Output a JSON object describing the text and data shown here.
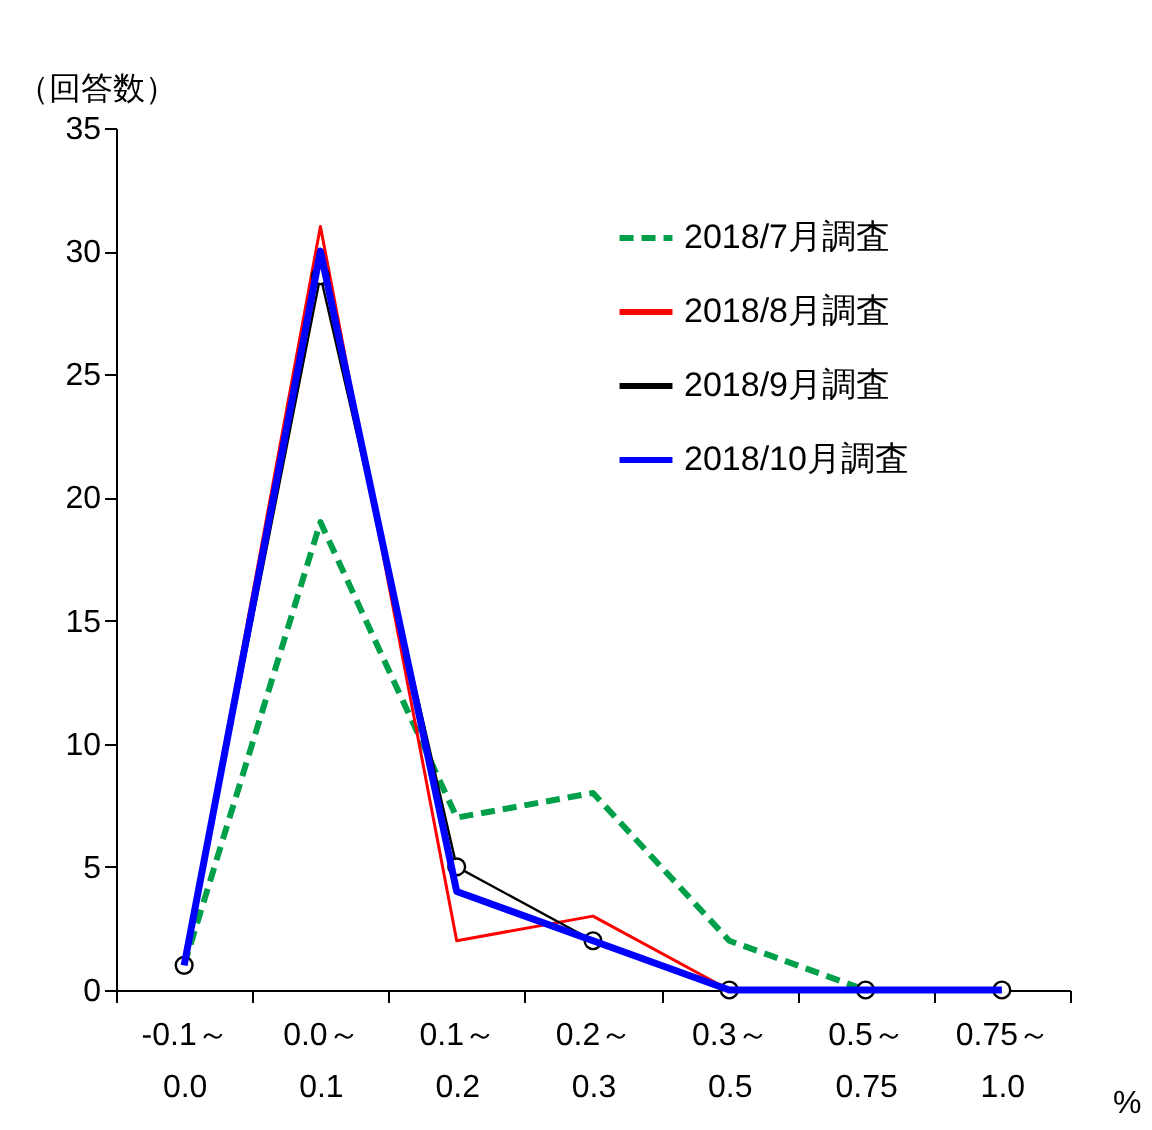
{
  "chart_data": {
    "type": "line",
    "ylabel": "（回答数）",
    "xlabel": "%",
    "categories": [
      "-0.1～\n0.0",
      "0.0～\n0.1",
      "0.1～\n0.2",
      "0.2～\n0.3",
      "0.3～\n0.5",
      "0.5～\n0.75",
      "0.75～\n1.0"
    ],
    "series": [
      {
        "name": "2018/7月調査",
        "color": "#00a04a",
        "line_style": "dashed",
        "marker": "none",
        "values": [
          1,
          19,
          7,
          8,
          2,
          0,
          0
        ]
      },
      {
        "name": "2018/8月調査",
        "color": "#ff0000",
        "line_style": "solid",
        "marker": "none",
        "values": [
          1,
          31,
          2,
          3,
          0,
          0,
          0
        ]
      },
      {
        "name": "2018/9月調査",
        "color": "#000000",
        "line_style": "solid",
        "marker": "circle",
        "values": [
          1,
          29,
          5,
          2,
          0,
          0,
          0
        ]
      },
      {
        "name": "2018/10月調査",
        "color": "#0000ff",
        "line_style": "solid",
        "marker": "none",
        "values": [
          1,
          30,
          4,
          2,
          0,
          0,
          0
        ]
      }
    ],
    "ylim": [
      0,
      35
    ],
    "yticks": [
      0,
      5,
      10,
      15,
      20,
      25,
      30,
      35
    ],
    "grid": false,
    "legend": "top right"
  }
}
